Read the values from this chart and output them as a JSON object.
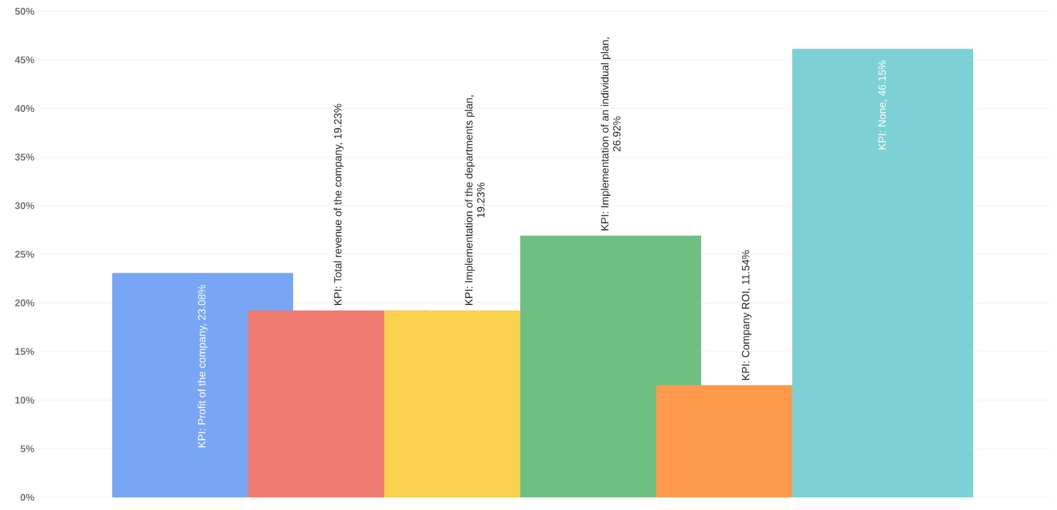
{
  "chart_data": {
    "type": "bar",
    "categories": [
      null,
      null,
      null,
      null,
      null,
      null
    ],
    "values": [
      23.08,
      19.23,
      19.23,
      26.92,
      11.54,
      46.15
    ],
    "colors": [
      "#78a6f5",
      "#ef7a70",
      "#fad04f",
      "#6fbf83",
      "#ff9a4c",
      "#7dd0d6"
    ],
    "value_labels": [
      "KPI: Profit of the company, 23.08%",
      "KPI: Total revenue of the company, 19.23%",
      "KPI: Implementation  of the departments plan, 19.23%",
      "KPI: Implementation  of an individual plan, 26.92%",
      "KPI: Company ROI, 11.54%",
      "KPI: None, 46.15%"
    ],
    "ylim": [
      0,
      50
    ],
    "yticks": [
      {
        "value": 0,
        "label": "0%"
      },
      {
        "value": 5,
        "label": "5%"
      },
      {
        "value": 10,
        "label": "10%"
      },
      {
        "value": 15,
        "label": "15%"
      },
      {
        "value": 20,
        "label": "20%"
      },
      {
        "value": 25,
        "label": "25%"
      },
      {
        "value": 30,
        "label": "30%"
      },
      {
        "value": 35,
        "label": "35%"
      },
      {
        "value": 40,
        "label": "40%"
      },
      {
        "value": 45,
        "label": "45%"
      },
      {
        "value": 50,
        "label": "50%"
      }
    ],
    "grid": "y"
  }
}
